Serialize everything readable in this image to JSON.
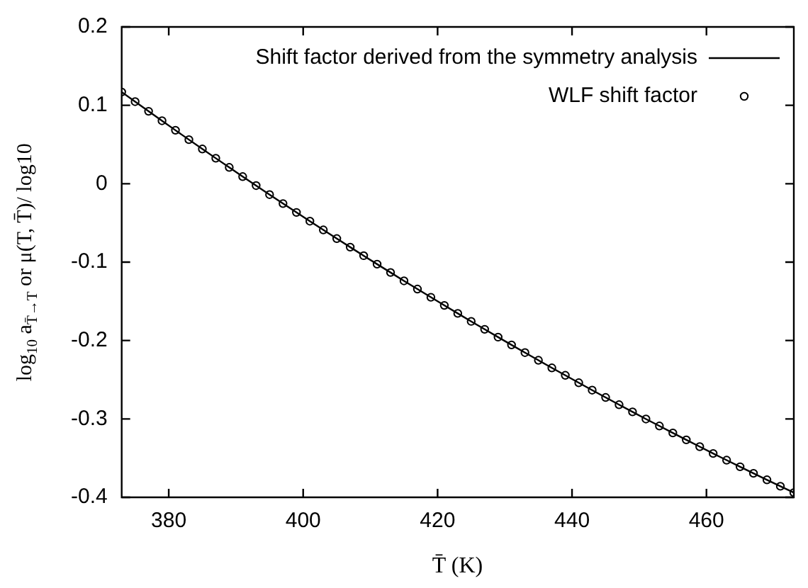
{
  "chart_data": {
    "type": "line",
    "xlabel": "T̄ (K)",
    "ylabel": "log$_{10}$ a$_{T̄→T}$ or μ(T, T̄)/ log10",
    "x": [
      373,
      375,
      377,
      379,
      381,
      383,
      385,
      387,
      389,
      391,
      393,
      395,
      397,
      399,
      401,
      403,
      405,
      407,
      409,
      411,
      413,
      415,
      417,
      419,
      421,
      423,
      425,
      427,
      429,
      431,
      433,
      435,
      437,
      439,
      441,
      443,
      445,
      447,
      449,
      451,
      453,
      455,
      457,
      459,
      461,
      463,
      465,
      467,
      469,
      471,
      473
    ],
    "series": [
      {
        "name": "Shift factor derived from the symmetry analysis",
        "color": "#000000",
        "marker": "none",
        "line_style": "solid",
        "values": [
          0.117,
          0.1047,
          0.0924,
          0.0803,
          0.0682,
          0.0562,
          0.0443,
          0.0325,
          0.0208,
          0.0091,
          -0.0024,
          -0.0139,
          -0.0253,
          -0.0366,
          -0.0478,
          -0.0589,
          -0.07,
          -0.0809,
          -0.0918,
          -0.1026,
          -0.1132,
          -0.1239,
          -0.1344,
          -0.1448,
          -0.1552,
          -0.1654,
          -0.1756,
          -0.1857,
          -0.1957,
          -0.2056,
          -0.2154,
          -0.2252,
          -0.2349,
          -0.2444,
          -0.2539,
          -0.2633,
          -0.2726,
          -0.2819,
          -0.291,
          -0.3001,
          -0.309,
          -0.3179,
          -0.3267,
          -0.3354,
          -0.3441,
          -0.3526,
          -0.361,
          -0.3694,
          -0.3777,
          -0.3859,
          -0.394
        ]
      },
      {
        "name": "WLF shift factor",
        "type": "scatter",
        "color": "#000000",
        "marker": "circle",
        "values": [
          0.117,
          0.1047,
          0.0924,
          0.0803,
          0.0682,
          0.0562,
          0.0443,
          0.0325,
          0.0208,
          0.0091,
          -0.0024,
          -0.0139,
          -0.0253,
          -0.0366,
          -0.0478,
          -0.0589,
          -0.07,
          -0.0809,
          -0.0918,
          -0.1026,
          -0.1132,
          -0.1239,
          -0.1344,
          -0.1448,
          -0.1552,
          -0.1654,
          -0.1756,
          -0.1857,
          -0.1957,
          -0.2056,
          -0.2154,
          -0.2252,
          -0.2349,
          -0.2444,
          -0.2539,
          -0.2633,
          -0.2726,
          -0.2819,
          -0.291,
          -0.3001,
          -0.309,
          -0.3179,
          -0.3267,
          -0.3354,
          -0.3441,
          -0.3526,
          -0.361,
          -0.3694,
          -0.3777,
          -0.3859,
          -0.394
        ]
      }
    ],
    "xlim": [
      373,
      473
    ],
    "xticks": [
      380,
      400,
      420,
      440,
      460
    ],
    "ylim": [
      -0.4,
      0.2
    ],
    "yticks": [
      -0.4,
      -0.3,
      -0.2,
      -0.1,
      0,
      0.1,
      0.2
    ],
    "grid": false,
    "legend": "top right"
  }
}
